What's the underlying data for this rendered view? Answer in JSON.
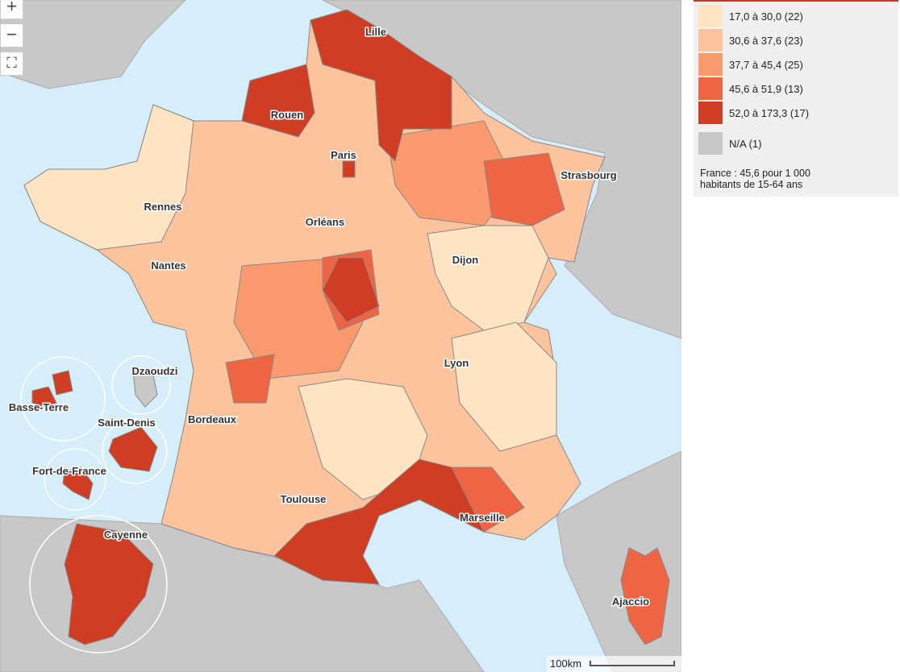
{
  "controls": {
    "zoom_in": "+",
    "zoom_out": "−",
    "fullscreen": "⛶"
  },
  "cities": [
    "Lille",
    "Rouen",
    "Paris",
    "Strasbourg",
    "Rennes",
    "Orléans",
    "Nantes",
    "Dijon",
    "Lyon",
    "Bordeaux",
    "Toulouse",
    "Marseille",
    "Ajaccio",
    "Dzaoudzi",
    "Basse-Terre",
    "Saint-Denis",
    "Fort-de-France",
    "Cayenne"
  ],
  "legend": {
    "classes": [
      {
        "label": "17,0 à 30,0 (22)",
        "color": "#fee4c3"
      },
      {
        "label": "30,6 à 37,6 (23)",
        "color": "#fcc39c"
      },
      {
        "label": "37,7 à 45,4 (25)",
        "color": "#fb9a6c"
      },
      {
        "label": "45,6 à 51,9 (13)",
        "color": "#ef6443"
      },
      {
        "label": "52,0 à 173,3 (17)",
        "color": "#d13d22"
      }
    ],
    "na": {
      "label": "N/A (1)",
      "color": "#c8c8c8"
    },
    "note": [
      "France : 45,6 pour 1 000",
      "habitants de 15-64 ans"
    ]
  },
  "scale": "100km"
}
